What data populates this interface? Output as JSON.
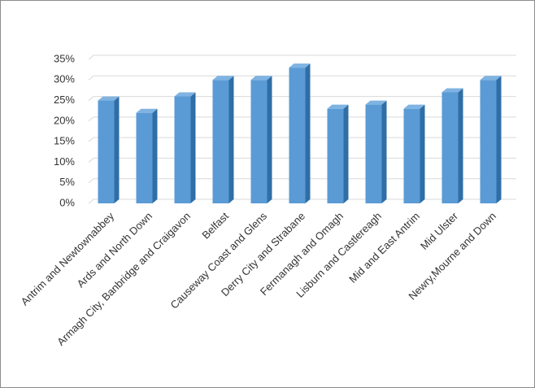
{
  "chart_data": {
    "type": "bar3d",
    "categories": [
      "Antrim and Newtownabbey",
      "Ards and North Down",
      "Armagh City, Banbridge and Craigavon",
      "Belfast",
      "Causeway Coast and Glens",
      "Derry City and Strabane",
      "Fermanagh and Omagh",
      "Lisburn and Castlereagh",
      "Mid and East Antrim",
      "Mid Ulster",
      "Newry,Mourne and Down"
    ],
    "values": [
      25,
      22,
      26,
      30,
      30,
      33,
      23,
      24,
      23,
      27,
      30
    ],
    "color": "#5b9bd5",
    "ylim": [
      0,
      35
    ],
    "yticks": [
      {
        "value": 0,
        "label": "0%"
      },
      {
        "value": 5,
        "label": "5%"
      },
      {
        "value": 10,
        "label": "10%"
      },
      {
        "value": 15,
        "label": "15%"
      },
      {
        "value": 20,
        "label": "20%"
      },
      {
        "value": 25,
        "label": "25%"
      },
      {
        "value": 30,
        "label": "30%"
      },
      {
        "value": 35,
        "label": "35%"
      }
    ],
    "grid": true
  }
}
